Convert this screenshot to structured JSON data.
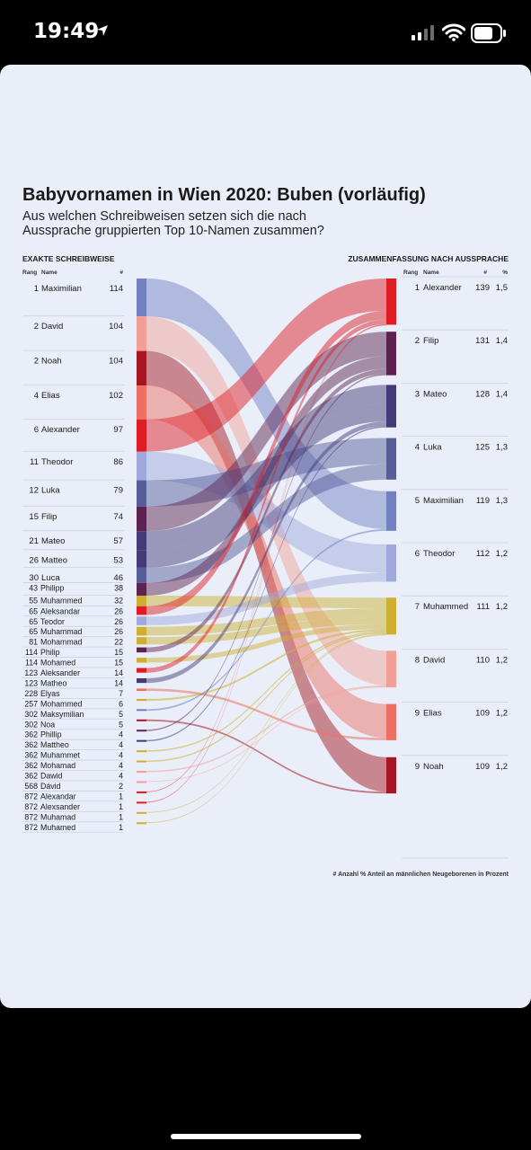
{
  "status_bar": {
    "time": "19:49"
  },
  "chart_data": {
    "type": "sankey",
    "title": "Babyvornamen in Wien 2020: Buben (vorläufig)",
    "subtitle": [
      "Aus welchen Schreibweisen setzen sich die nach",
      "Aussprache gruppierten Top 10-Namen zusammen?"
    ],
    "left_header": "EXAKTE SCHREIBWEISE",
    "left_columns": {
      "rank": "Rang",
      "name": "Name",
      "count": "#"
    },
    "right_header": "ZUSAMMENFASSUNG NACH AUSSPRACHE",
    "right_columns": {
      "rank": "Rang",
      "name": "Name",
      "count": "#",
      "pct": "%"
    },
    "footnote": "# Anzahl  % Anteil an männlichen Neugeborenen in Prozent",
    "left": [
      {
        "rank": "1",
        "name": "Maximilian",
        "count": 114,
        "target": "Maximilian"
      },
      {
        "rank": "2",
        "name": "David",
        "count": 104,
        "target": "David"
      },
      {
        "rank": "2",
        "name": "Noah",
        "count": 104,
        "target": "Noah"
      },
      {
        "rank": "4",
        "name": "Elias",
        "count": 102,
        "target": "Elias"
      },
      {
        "rank": "6",
        "name": "Alexander",
        "count": 97,
        "target": "Alexander"
      },
      {
        "rank": "11",
        "name": "Theodor",
        "count": 86,
        "target": "Theodor"
      },
      {
        "rank": "12",
        "name": "Luka",
        "count": 79,
        "target": "Luka"
      },
      {
        "rank": "15",
        "name": "Filip",
        "count": 74,
        "target": "Filip"
      },
      {
        "rank": "21",
        "name": "Mateo",
        "count": 57,
        "target": "Mateo"
      },
      {
        "rank": "26",
        "name": "Matteo",
        "count": 53,
        "target": "Mateo"
      },
      {
        "rank": "30",
        "name": "Luca",
        "count": 46,
        "target": "Luka"
      },
      {
        "rank": "43",
        "name": "Philipp",
        "count": 38,
        "target": "Filip"
      },
      {
        "rank": "55",
        "name": "Muhammed",
        "count": 32,
        "target": "Muhammed"
      },
      {
        "rank": "65",
        "name": "Aleksandar",
        "count": 26,
        "target": "Alexander"
      },
      {
        "rank": "65",
        "name": "Teodor",
        "count": 26,
        "target": "Theodor"
      },
      {
        "rank": "65",
        "name": "Muhammad",
        "count": 26,
        "target": "Muhammed"
      },
      {
        "rank": "81",
        "name": "Mohammad",
        "count": 22,
        "target": "Muhammed"
      },
      {
        "rank": "114",
        "name": "Philip",
        "count": 15,
        "target": "Filip"
      },
      {
        "rank": "114",
        "name": "Mohamed",
        "count": 15,
        "target": "Muhammed"
      },
      {
        "rank": "123",
        "name": "Aleksander",
        "count": 14,
        "target": "Alexander"
      },
      {
        "rank": "123",
        "name": "Matheo",
        "count": 14,
        "target": "Mateo"
      },
      {
        "rank": "228",
        "name": "Elyas",
        "count": 7,
        "target": "Elias"
      },
      {
        "rank": "257",
        "name": "Mohammed",
        "count": 6,
        "target": "Muhammed"
      },
      {
        "rank": "302",
        "name": "Maksymilian",
        "count": 5,
        "target": "Maximilian"
      },
      {
        "rank": "302",
        "name": "Noa",
        "count": 5,
        "target": "Noah"
      },
      {
        "rank": "362",
        "name": "Phillip",
        "count": 4,
        "target": "Filip"
      },
      {
        "rank": "362",
        "name": "Mattheo",
        "count": 4,
        "target": "Mateo"
      },
      {
        "rank": "362",
        "name": "Muhammet",
        "count": 4,
        "target": "Muhammed"
      },
      {
        "rank": "362",
        "name": "Mohamad",
        "count": 4,
        "target": "Muhammed"
      },
      {
        "rank": "362",
        "name": "Dawid",
        "count": 4,
        "target": "David"
      },
      {
        "rank": "568",
        "name": "Dávid",
        "count": 2,
        "target": "David"
      },
      {
        "rank": "872",
        "name": "Alexandar",
        "count": 1,
        "target": "Alexander"
      },
      {
        "rank": "872",
        "name": "Alexsander",
        "count": 1,
        "target": "Alexander"
      },
      {
        "rank": "872",
        "name": "Muhamad",
        "count": 1,
        "target": "Muhammed"
      },
      {
        "rank": "872",
        "name": "Muhamed",
        "count": 1,
        "target": "Muhammed"
      }
    ],
    "right": [
      {
        "rank": "1",
        "name": "Alexander",
        "count": 139,
        "pct": "1,5",
        "color": "#e01b24"
      },
      {
        "rank": "2",
        "name": "Filip",
        "count": 131,
        "pct": "1,4",
        "color": "#5c2351"
      },
      {
        "rank": "3",
        "name": "Mateo",
        "count": 128,
        "pct": "1,4",
        "color": "#433b78"
      },
      {
        "rank": "4",
        "name": "Luka",
        "count": 125,
        "pct": "1,3",
        "color": "#565d99"
      },
      {
        "rank": "5",
        "name": "Maximilian",
        "count": 119,
        "pct": "1,3",
        "color": "#7380c2"
      },
      {
        "rank": "6",
        "name": "Theodor",
        "count": 112,
        "pct": "1,2",
        "color": "#a0a9dc"
      },
      {
        "rank": "7",
        "name": "Muhammed",
        "count": 111,
        "pct": "1,2",
        "color": "#cdb030"
      },
      {
        "rank": "8",
        "name": "David",
        "count": 110,
        "pct": "1,2",
        "color": "#f2a097"
      },
      {
        "rank": "9",
        "name": "Elias",
        "count": 109,
        "pct": "1,2",
        "color": "#ee6f63"
      },
      {
        "rank": "9",
        "name": "Noah",
        "count": 109,
        "pct": "1,2",
        "color": "#a51522"
      }
    ]
  }
}
